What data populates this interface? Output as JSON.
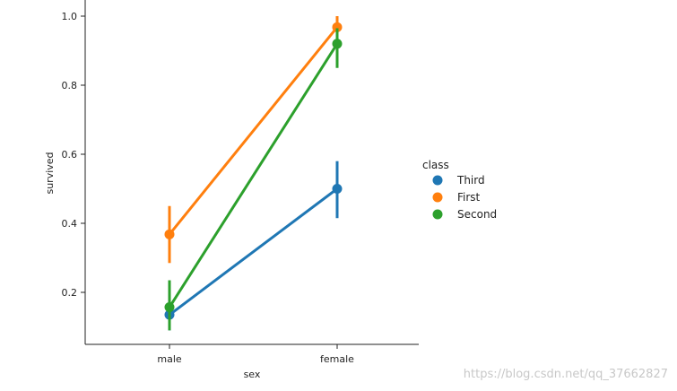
{
  "chart_data": {
    "type": "line",
    "categories": [
      "male",
      "female"
    ],
    "xlabel": "sex",
    "ylabel": "survived",
    "ylim": [
      0.05,
      1.05
    ],
    "yticks": [
      0.2,
      0.4,
      0.6,
      0.8,
      1.0
    ],
    "ytick_labels": [
      "0.2",
      "0.4",
      "0.6",
      "0.8",
      "1.0"
    ],
    "legend_title": "class",
    "legend_position": "right",
    "grid": false,
    "series": [
      {
        "name": "Third",
        "color": "#1f77b4",
        "values": [
          0.135,
          0.5
        ],
        "ci_low": [
          0.09,
          0.415
        ],
        "ci_high": [
          0.19,
          0.58
        ]
      },
      {
        "name": "First",
        "color": "#ff7f0e",
        "values": [
          0.368,
          0.968
        ],
        "ci_low": [
          0.285,
          0.93
        ],
        "ci_high": [
          0.45,
          1.0
        ]
      },
      {
        "name": "Second",
        "color": "#2ca02c",
        "values": [
          0.157,
          0.92
        ],
        "ci_low": [
          0.09,
          0.85
        ],
        "ci_high": [
          0.235,
          0.965
        ]
      }
    ]
  },
  "watermark": "https://blog.csdn.net/qq_37662827"
}
